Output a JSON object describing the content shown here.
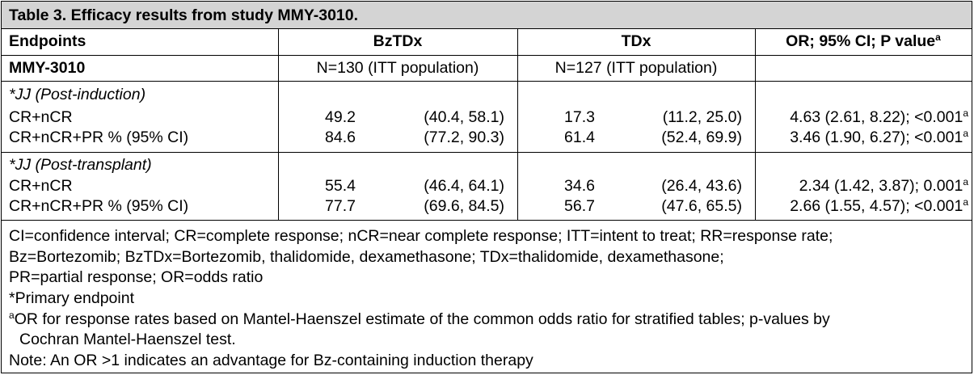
{
  "title": "Table 3. Efficacy results from study MMY-3010.",
  "headers": {
    "endpoints": "Endpoints",
    "bztdx": "BzTDx",
    "tdx": "TDx",
    "or": "OR; 95% CI; P value",
    "or_sup": "a"
  },
  "study_row": {
    "label": "MMY-3010",
    "bztdx_n": "N=130 (ITT population)",
    "tdx_n": "N=127 (ITT population)"
  },
  "sections": [
    {
      "heading": "*JJ (Post-induction)",
      "rows": [
        {
          "label": "CR+nCR",
          "bz_val": "49.2",
          "bz_ci": "(40.4, 58.1)",
          "td_val": "17.3",
          "td_ci": "(11.2, 25.0)",
          "or": "4.63 (2.61, 8.22); <0.001",
          "or_sup": "a"
        },
        {
          "label": "CR+nCR+PR % (95% CI)",
          "bz_val": "84.6",
          "bz_ci": "(77.2, 90.3)",
          "td_val": "61.4",
          "td_ci": "(52.4, 69.9)",
          "or": "3.46 (1.90, 6.27); <0.001",
          "or_sup": "a"
        }
      ]
    },
    {
      "heading": "*JJ (Post-transplant)",
      "rows": [
        {
          "label": "CR+nCR",
          "bz_val": "55.4",
          "bz_ci": "(46.4, 64.1)",
          "td_val": "34.6",
          "td_ci": "(26.4, 43.6)",
          "or": "2.34 (1.42, 3.87); 0.001",
          "or_sup": "a"
        },
        {
          "label": "CR+nCR+PR % (95% CI)",
          "bz_val": "77.7",
          "bz_ci": "(69.6, 84.5)",
          "td_val": "56.7",
          "td_ci": "(47.6, 65.5)",
          "or": "2.66 (1.55, 4.57); <0.001",
          "or_sup": "a"
        }
      ]
    }
  ],
  "footnotes": {
    "abbrev_1": "CI=confidence interval; CR=complete response; nCR=near complete response; ITT=intent to treat; RR=response rate;",
    "abbrev_2": "Bz=Bortezomib; BzTDx=Bortezomib, thalidomide, dexamethasone; TDx=thalidomide, dexamethasone;",
    "abbrev_3": "PR=partial response; OR=odds ratio",
    "primary": "*Primary endpoint",
    "a_sup": "a",
    "a_line1": "OR for response rates based on Mantel-Haenszel estimate of the common odds ratio for stratified tables; p-values by",
    "a_line2": "Cochran Mantel-Haenszel test.",
    "note": "Note: An OR >1 indicates an advantage for Bz-containing induction therapy"
  }
}
